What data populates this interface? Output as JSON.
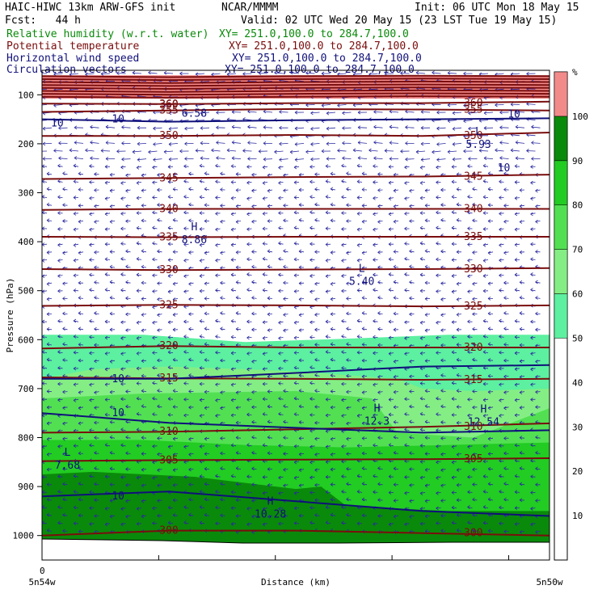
{
  "header": {
    "model": "HAIC-HIWC 13km ARW-GFS init",
    "org": "NCAR/MMMM",
    "init": "Init: 06 UTC Mon 18 May 15",
    "fcst": "Fcst:   44 h",
    "valid": "Valid: 02 UTC Wed 20 May 15 (23 LST Tue 19 May 15)"
  },
  "fields": [
    {
      "label": "Relative humidity (w.r.t. water)",
      "xy": "XY= 251.0,100.0 to 284.7,100.0",
      "color": "#0a8a0a"
    },
    {
      "label": "Potential temperature",
      "xy": "XY= 251.0,100.0 to 284.7,100.0",
      "color": "#7a0d0d"
    },
    {
      "label": "Horizontal wind speed",
      "xy": "XY= 251.0,100.0 to 284.7,100.0",
      "color": "#10107a"
    },
    {
      "label": "Circulation vectors",
      "xy": "XY= 251.0,100.0 to 284.7,100.0",
      "color": "#10107a"
    }
  ],
  "chart_data": {
    "type": "heatmap",
    "ylabel": "Pressure (hPa)",
    "xlabel": "Distance (km)",
    "yticks": [
      100,
      200,
      300,
      400,
      500,
      600,
      700,
      800,
      900,
      1000
    ],
    "ylim": [
      50,
      1050
    ],
    "x_origin_label": "0",
    "x_left_label": "5n54w",
    "x_right_label": "5n50w",
    "colorbar": {
      "unit": "%",
      "ticks": [
        10,
        20,
        30,
        40,
        50,
        60,
        70,
        80,
        90,
        100
      ],
      "levels": [
        {
          "from": 50,
          "to": 60,
          "color": "#5cf0a0"
        },
        {
          "from": 60,
          "to": 70,
          "color": "#84ee84"
        },
        {
          "from": 70,
          "to": 80,
          "color": "#52e052"
        },
        {
          "from": 80,
          "to": 90,
          "color": "#22cc22"
        },
        {
          "from": 90,
          "to": 100,
          "color": "#0a8a0a"
        },
        {
          "from": 100,
          "to": 110,
          "color": "#f28a8a"
        }
      ]
    },
    "theta_contours": [
      {
        "label": "300",
        "p": [
          1000,
          990,
          990,
          995,
          1000
        ]
      },
      {
        "label": "305",
        "p": [
          848,
          846,
          845,
          844,
          842
        ]
      },
      {
        "label": "310",
        "p": [
          790,
          788,
          783,
          778,
          771
        ]
      },
      {
        "label": "315",
        "p": [
          677,
          679,
          680,
          682,
          680
        ]
      },
      {
        "label": "320",
        "p": [
          618,
          613,
          616,
          616,
          616
        ]
      },
      {
        "label": "325",
        "p": [
          531,
          529,
          530,
          532,
          530
        ]
      },
      {
        "label": "330",
        "p": [
          456,
          458,
          457,
          456,
          454
        ]
      },
      {
        "label": "335",
        "p": [
          390,
          391,
          390,
          390,
          390
        ]
      },
      {
        "label": "340",
        "p": [
          335,
          333,
          333,
          333,
          333
        ]
      },
      {
        "label": "345",
        "p": [
          272,
          270,
          268,
          267,
          263
        ]
      },
      {
        "label": "350",
        "p": [
          184,
          184,
          182,
          184,
          177
        ]
      },
      {
        "label": "355",
        "p": [
          135,
          132,
          129,
          130,
          132
        ]
      },
      {
        "label": "360",
        "p": [
          118,
          119,
          117,
          117,
          114
        ]
      }
    ],
    "speed_contours": [
      {
        "label": "10",
        "p": [
          150,
          155,
          152,
          150,
          148
        ]
      },
      {
        "label": "10",
        "p": [
          680,
          680,
          668,
          655,
          652
        ]
      },
      {
        "label": "10",
        "p": [
          750,
          770,
          780,
          790,
          785
        ]
      },
      {
        "label": "10",
        "p": [
          920,
          910,
          930,
          950,
          960
        ]
      }
    ],
    "extrema": [
      {
        "type": "H",
        "value": "8.86",
        "x_frac": 0.3,
        "p": 390
      },
      {
        "type": "L",
        "value": "5.40",
        "x_frac": 0.63,
        "p": 475
      },
      {
        "type": "L",
        "value": "5.93",
        "x_frac": 0.86,
        "p": 195
      },
      {
        "type": "H",
        "value": "12.3",
        "x_frac": 0.66,
        "p": 760
      },
      {
        "type": "H",
        "value": "12.54",
        "x_frac": 0.87,
        "p": 762
      },
      {
        "type": "L",
        "value": "7.68",
        "x_frac": 0.05,
        "p": 850
      },
      {
        "type": "H",
        "value": "10.28",
        "x_frac": 0.45,
        "p": 950
      }
    ],
    "extra_labels": [
      {
        "text": "360",
        "x_frac": 0.25,
        "p": 120,
        "color": "#7a0d0d"
      },
      {
        "text": "6.58",
        "x_frac": 0.3,
        "p": 138,
        "color": "#10107a"
      },
      {
        "text": "10",
        "x_frac": 0.03,
        "p": 158,
        "color": "#10107a"
      },
      {
        "text": "10",
        "x_frac": 0.91,
        "p": 250,
        "color": "#10107a"
      },
      {
        "text": "10",
        "x_frac": 0.93,
        "p": 140,
        "color": "#10107a"
      }
    ]
  }
}
